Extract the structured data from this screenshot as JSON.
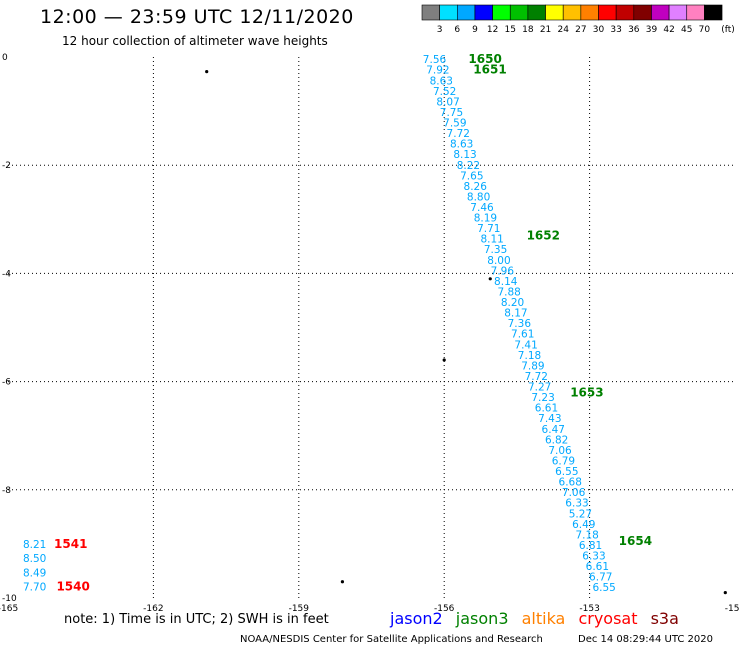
{
  "header": {
    "title": "12:00 — 23:59 UTC 12/11/2020",
    "subtitle": "12 hour collection of altimeter wave heights"
  },
  "colorbar": {
    "unit": "(ft)",
    "levels": [
      "3",
      "6",
      "9",
      "12",
      "15",
      "18",
      "21",
      "24",
      "27",
      "30",
      "33",
      "36",
      "39",
      "42",
      "45",
      "70"
    ],
    "colors": [
      "#7f7f7f",
      "#00e0ff",
      "#00a8ff",
      "#0000ff",
      "#00ff00",
      "#00c000",
      "#008000",
      "#ffff00",
      "#ffc000",
      "#ff8000",
      "#ff0000",
      "#c00000",
      "#800000",
      "#c000c0",
      "#e080ff",
      "#ff80c0",
      "#000000"
    ]
  },
  "footer": {
    "note": "note:  1) Time is in UTC;  2) SWH is in feet",
    "satellites": [
      {
        "name": "jason2",
        "color": "#0000ff"
      },
      {
        "name": "jason3",
        "color": "#008000"
      },
      {
        "name": "altika",
        "color": "#ff8000"
      },
      {
        "name": "cryosat",
        "color": "#ff0000"
      },
      {
        "name": "s3a",
        "color": "#800000"
      }
    ],
    "credit": "NOAA/NESDIS Center for Satellite Applications and Research",
    "timestamp": "Dec 14 08:29:44 UTC 2020"
  },
  "chart_data": {
    "type": "scatter",
    "xlim": [
      -165,
      -150
    ],
    "ylim": [
      -10,
      0
    ],
    "xticks": [
      {
        "value": -165,
        "label": "-165"
      },
      {
        "value": -162,
        "label": "-162"
      },
      {
        "value": -159,
        "label": "-159"
      },
      {
        "value": -156,
        "label": "-156"
      },
      {
        "value": -153,
        "label": "-153"
      },
      {
        "value": -150,
        "label": "-150"
      }
    ],
    "yticks": [
      {
        "value": 0,
        "label": "0"
      },
      {
        "value": -2,
        "label": "-2"
      },
      {
        "value": -4,
        "label": "-4"
      },
      {
        "value": -6,
        "label": "-6"
      },
      {
        "value": -8,
        "label": "-8"
      },
      {
        "value": -10,
        "label": "-10"
      }
    ],
    "grid": true,
    "tracks": [
      {
        "satellite": "jason3",
        "color": "#00a8ff",
        "labels": [
          "7.56",
          "7.92",
          "8.63",
          "7.52",
          "8.07",
          "7.75",
          "7.59",
          "7.72",
          "8.63",
          "8.13",
          "8.22",
          "7.65",
          "8.26",
          "8.80",
          "7.46",
          "8.19",
          "7.71",
          "8.11",
          "7.35",
          "8.00",
          "7.96",
          "8.14",
          "7.88",
          "8.20",
          "8.17",
          "7.36",
          "7.61",
          "7.41",
          "7.18",
          "7.89",
          "7.72",
          "7.27",
          "7.23",
          "6.61",
          "7.43",
          "6.47",
          "6.82",
          "7.06",
          "6.79",
          "6.55",
          "6.68",
          "7.06",
          "6.33",
          "5.27",
          "6.49",
          "7.18",
          "6.81",
          "6.33",
          "6.61",
          "6.77",
          "6.55"
        ],
        "start": {
          "lon": -156.2,
          "lat": -0.04
        },
        "end": {
          "lon": -152.7,
          "lat": -9.8
        }
      },
      {
        "satellite": "cryosat",
        "color": "#00a8ff",
        "labels": [
          "8.21",
          "8.50",
          "8.49",
          "7.70"
        ],
        "start": {
          "lon": -164.45,
          "lat": -9.0
        },
        "end": {
          "lon": -164.45,
          "lat": -9.79
        }
      }
    ],
    "time_labels": [
      {
        "text": "1650",
        "lon": -155.5,
        "lat": -0.04,
        "color": "#008000"
      },
      {
        "text": "1651",
        "lon": -155.4,
        "lat": -0.23,
        "color": "#008000"
      },
      {
        "text": "1652",
        "lon": -154.3,
        "lat": -3.3,
        "color": "#008000"
      },
      {
        "text": "1653",
        "lon": -153.4,
        "lat": -6.2,
        "color": "#008000"
      },
      {
        "text": "1654",
        "lon": -152.4,
        "lat": -8.95,
        "color": "#008000"
      },
      {
        "text": "1541",
        "lon": -164.05,
        "lat": -9.0,
        "color": "#ff0000"
      },
      {
        "text": "1540",
        "lon": -164.0,
        "lat": -9.79,
        "color": "#ff0000"
      }
    ],
    "islands": [
      {
        "lon": -160.9,
        "lat": -0.27
      },
      {
        "lon": -156.0,
        "lat": -5.6
      },
      {
        "lon": -155.05,
        "lat": -4.1
      },
      {
        "lon": -158.1,
        "lat": -9.7
      },
      {
        "lon": -150.2,
        "lat": -9.9
      }
    ]
  }
}
